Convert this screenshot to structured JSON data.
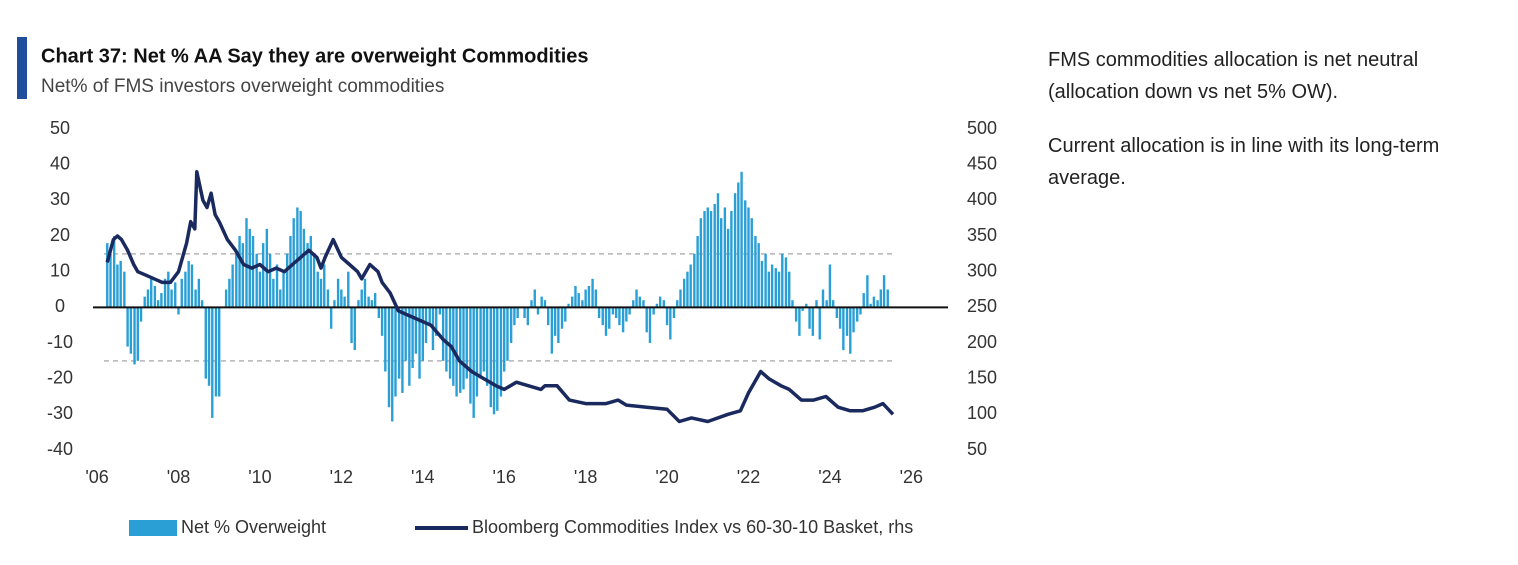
{
  "chart_data": {
    "type": "bar_line",
    "title": "Chart 37: Net % AA Say they are overweight Commodities",
    "subtitle": "Net% of FMS investors overweight commodities",
    "xlim": [
      2005.9,
      2026.9
    ],
    "xticks": [
      {
        "value": 2006,
        "label": "'06"
      },
      {
        "value": 2008,
        "label": "'08"
      },
      {
        "value": 2010,
        "label": "'10"
      },
      {
        "value": 2012,
        "label": "'12"
      },
      {
        "value": 2014,
        "label": "'14"
      },
      {
        "value": 2016,
        "label": "'16"
      },
      {
        "value": 2018,
        "label": "'18"
      },
      {
        "value": 2020,
        "label": "'20"
      },
      {
        "value": 2022,
        "label": "'22"
      },
      {
        "value": 2024,
        "label": "'24"
      },
      {
        "value": 2026,
        "label": "'26"
      }
    ],
    "ylim": [
      -40,
      50
    ],
    "yticks": [
      -40,
      -30,
      -20,
      -10,
      0,
      10,
      20,
      30,
      40,
      50
    ],
    "y2lim": [
      50,
      500
    ],
    "y2ticks": [
      50,
      100,
      150,
      200,
      250,
      300,
      350,
      400,
      450,
      500
    ],
    "reference_lines": [
      15,
      -15
    ],
    "legend": "bottom",
    "series": [
      {
        "name": "Net % Overweight",
        "type": "bar",
        "color": "#2a9fd6",
        "x": [
          2006.25,
          2006.33,
          2006.42,
          2006.5,
          2006.58,
          2006.67,
          2006.75,
          2006.83,
          2006.92,
          2007.0,
          2007.08,
          2007.17,
          2007.25,
          2007.33,
          2007.42,
          2007.5,
          2007.58,
          2007.67,
          2007.75,
          2007.83,
          2007.92,
          2008.0,
          2008.08,
          2008.17,
          2008.25,
          2008.33,
          2008.42,
          2008.5,
          2008.58,
          2008.67,
          2008.75,
          2008.83,
          2008.92,
          2009.0,
          2009.08,
          2009.17,
          2009.25,
          2009.33,
          2009.42,
          2009.5,
          2009.58,
          2009.67,
          2009.75,
          2009.83,
          2009.92,
          2010.0,
          2010.08,
          2010.17,
          2010.25,
          2010.33,
          2010.42,
          2010.5,
          2010.58,
          2010.67,
          2010.75,
          2010.83,
          2010.92,
          2011.0,
          2011.08,
          2011.17,
          2011.25,
          2011.33,
          2011.42,
          2011.5,
          2011.58,
          2011.67,
          2011.75,
          2011.83,
          2011.92,
          2012.0,
          2012.08,
          2012.17,
          2012.25,
          2012.33,
          2012.42,
          2012.5,
          2012.58,
          2012.67,
          2012.75,
          2012.83,
          2012.92,
          2013.0,
          2013.08,
          2013.17,
          2013.25,
          2013.33,
          2013.42,
          2013.5,
          2013.58,
          2013.67,
          2013.75,
          2013.83,
          2013.92,
          2014.0,
          2014.08,
          2014.17,
          2014.25,
          2014.33,
          2014.42,
          2014.5,
          2014.58,
          2014.67,
          2014.75,
          2014.83,
          2014.92,
          2015.0,
          2015.08,
          2015.17,
          2015.25,
          2015.33,
          2015.42,
          2015.5,
          2015.58,
          2015.67,
          2015.75,
          2015.83,
          2015.92,
          2016.0,
          2016.08,
          2016.17,
          2016.25,
          2016.33,
          2016.42,
          2016.5,
          2016.58,
          2016.67,
          2016.75,
          2016.83,
          2016.92,
          2017.0,
          2017.08,
          2017.17,
          2017.25,
          2017.33,
          2017.42,
          2017.5,
          2017.58,
          2017.67,
          2017.75,
          2017.83,
          2017.92,
          2018.0,
          2018.08,
          2018.17,
          2018.25,
          2018.33,
          2018.42,
          2018.5,
          2018.58,
          2018.67,
          2018.75,
          2018.83,
          2018.92,
          2019.0,
          2019.08,
          2019.17,
          2019.25,
          2019.33,
          2019.42,
          2019.5,
          2019.58,
          2019.67,
          2019.75,
          2019.83,
          2019.92,
          2020.0,
          2020.08,
          2020.17,
          2020.25,
          2020.33,
          2020.42,
          2020.5,
          2020.58,
          2020.67,
          2020.75,
          2020.83,
          2020.92,
          2021.0,
          2021.08,
          2021.17,
          2021.25,
          2021.33,
          2021.42,
          2021.5,
          2021.58,
          2021.67,
          2021.75,
          2021.83,
          2021.92,
          2022.0,
          2022.08,
          2022.17,
          2022.25,
          2022.33,
          2022.42,
          2022.5,
          2022.58,
          2022.67,
          2022.75,
          2022.83,
          2022.92,
          2023.0,
          2023.08,
          2023.17,
          2023.25,
          2023.33,
          2023.42,
          2023.5,
          2023.58,
          2023.67,
          2023.75,
          2023.83,
          2023.92,
          2024.0,
          2024.08,
          2024.17,
          2024.25,
          2024.33,
          2024.42,
          2024.5,
          2024.58,
          2024.67,
          2024.75,
          2024.83,
          2024.92,
          2025.0,
          2025.08,
          2025.17,
          2025.25,
          2025.33,
          2025.42
        ],
        "values": [
          18,
          15,
          20,
          12,
          13,
          10,
          -11,
          -13,
          -16,
          -15,
          -4,
          3,
          5,
          8,
          6,
          2,
          4,
          8,
          10,
          5,
          7,
          -2,
          8,
          10,
          13,
          12,
          5,
          8,
          2,
          -20,
          -22,
          -31,
          -25,
          -25,
          0,
          5,
          8,
          12,
          15,
          20,
          18,
          25,
          22,
          20,
          15,
          10,
          18,
          22,
          15,
          8,
          12,
          5,
          10,
          15,
          20,
          25,
          28,
          27,
          22,
          18,
          20,
          15,
          10,
          8,
          12,
          5,
          -6,
          2,
          8,
          5,
          3,
          10,
          -10,
          -12,
          2,
          5,
          8,
          3,
          2,
          4,
          -3,
          -8,
          -18,
          -28,
          -32,
          -25,
          -20,
          -24,
          -15,
          -22,
          -17,
          -13,
          -20,
          -15,
          -10,
          -5,
          -12,
          -8,
          -2,
          -15,
          -18,
          -20,
          -22,
          -25,
          -24,
          -23,
          -20,
          -27,
          -31,
          -25,
          -20,
          -18,
          -22,
          -28,
          -30,
          -29,
          -25,
          -18,
          -15,
          -10,
          -5,
          -3,
          0,
          -3,
          -5,
          2,
          5,
          -2,
          3,
          2,
          -5,
          -13,
          -8,
          -10,
          -6,
          -4,
          1,
          3,
          6,
          4,
          2,
          5,
          6,
          8,
          5,
          -3,
          -5,
          -8,
          -6,
          -2,
          -3,
          -5,
          -7,
          -4,
          -2,
          2,
          5,
          3,
          2,
          -7,
          -10,
          -2,
          1,
          3,
          2,
          -5,
          -9,
          -3,
          2,
          5,
          8,
          10,
          12,
          15,
          20,
          25,
          27,
          28,
          27,
          29,
          32,
          25,
          28,
          22,
          27,
          32,
          35,
          38,
          30,
          28,
          25,
          20,
          18,
          13,
          15,
          10,
          12,
          11,
          10,
          15,
          14,
          10,
          2,
          -4,
          -8,
          -1,
          1,
          -6,
          -8,
          2,
          -9,
          5,
          2,
          12,
          2,
          -3,
          -6,
          -12,
          -8,
          -13,
          -7,
          -4,
          -2,
          4,
          9,
          1,
          3,
          2,
          5,
          9,
          5
        ]
      },
      {
        "name": "Bloomberg Commodities Index vs 60-30-10 Basket, rhs",
        "type": "line",
        "axis": "y2",
        "color": "#1b2a5e",
        "x": [
          2006.25,
          2006.4,
          2006.5,
          2006.6,
          2006.75,
          2006.9,
          2007.0,
          2007.2,
          2007.4,
          2007.6,
          2007.8,
          2008.0,
          2008.2,
          2008.3,
          2008.4,
          2008.45,
          2008.6,
          2008.7,
          2008.8,
          2008.9,
          2009.0,
          2009.2,
          2009.4,
          2009.6,
          2009.8,
          2010.0,
          2010.2,
          2010.4,
          2010.6,
          2010.8,
          2011.0,
          2011.2,
          2011.4,
          2011.5,
          2011.6,
          2011.8,
          2012.0,
          2012.2,
          2012.4,
          2012.5,
          2012.7,
          2012.9,
          2013.0,
          2013.2,
          2013.4,
          2013.6,
          2013.8,
          2014.0,
          2014.2,
          2014.5,
          2014.7,
          2014.9,
          2015.2,
          2015.5,
          2015.8,
          2016.0,
          2016.3,
          2016.6,
          2016.9,
          2017.0,
          2017.3,
          2017.6,
          2018.0,
          2018.5,
          2018.8,
          2019.0,
          2019.5,
          2020.0,
          2020.3,
          2020.6,
          2021.0,
          2021.5,
          2021.8,
          2022.0,
          2022.3,
          2022.5,
          2022.8,
          2023.0,
          2023.3,
          2023.6,
          2023.9,
          2024.2,
          2024.5,
          2024.8,
          2025.1,
          2025.3,
          2025.55
        ],
        "values": [
          313,
          345,
          350,
          345,
          330,
          310,
          300,
          295,
          290,
          285,
          285,
          300,
          340,
          370,
          360,
          440,
          400,
          390,
          410,
          380,
          370,
          345,
          330,
          310,
          305,
          310,
          300,
          305,
          300,
          310,
          320,
          330,
          320,
          305,
          320,
          345,
          320,
          310,
          300,
          290,
          310,
          300,
          285,
          270,
          245,
          240,
          235,
          230,
          225,
          205,
          195,
          175,
          160,
          150,
          140,
          135,
          145,
          140,
          135,
          140,
          140,
          120,
          115,
          115,
          120,
          113,
          110,
          107,
          90,
          95,
          90,
          100,
          105,
          130,
          160,
          150,
          140,
          135,
          120,
          120,
          125,
          110,
          105,
          105,
          110,
          115,
          100
        ]
      }
    ]
  },
  "commentary": [
    "FMS commodities allocation is net neutral (allocation down vs net 5% OW).",
    "Current allocation is in line with its long-term average."
  ]
}
